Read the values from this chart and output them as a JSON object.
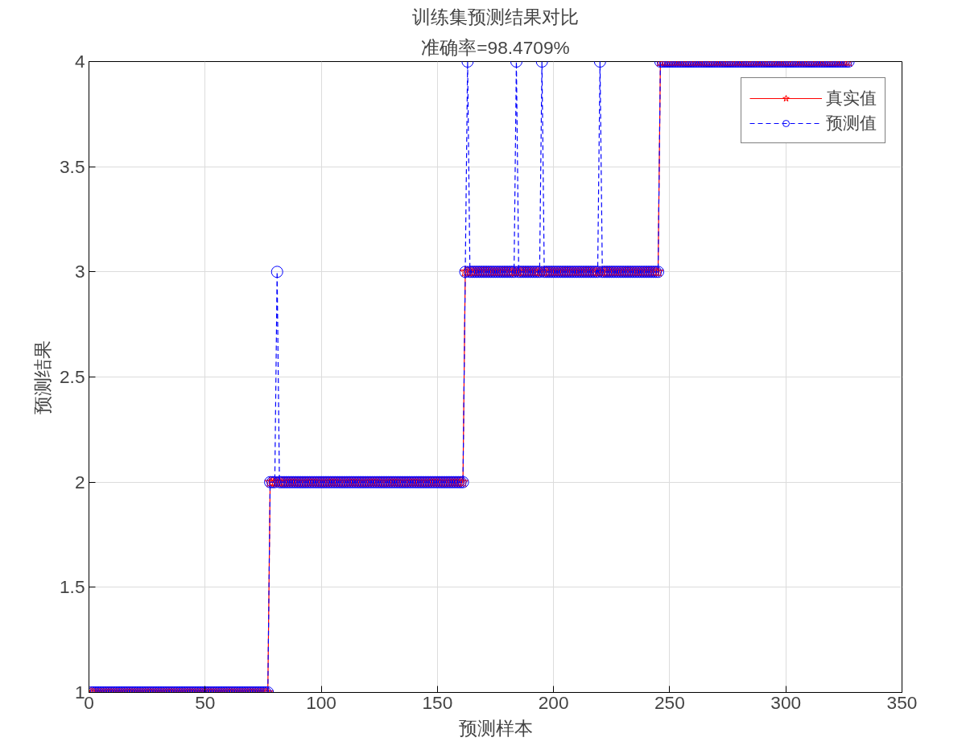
{
  "chart_data": {
    "type": "line",
    "title": "训练集预测结果对比",
    "subtitle": "准确率=98.4709%",
    "xlabel": "预测样本",
    "ylabel": "预测结果",
    "x": [
      1,
      2,
      3,
      4,
      5,
      6,
      7,
      8,
      9,
      10,
      11,
      12,
      13,
      14,
      15,
      16,
      17,
      18,
      19,
      20,
      21,
      22,
      23,
      24,
      25,
      26,
      27,
      28,
      29,
      30,
      31,
      32,
      33,
      34,
      35,
      36,
      37,
      38,
      39,
      40,
      41,
      42,
      43,
      44,
      45,
      46,
      47,
      48,
      49,
      50,
      51,
      52,
      53,
      54,
      55,
      56,
      57,
      58,
      59,
      60,
      61,
      62,
      63,
      64,
      65,
      66,
      67,
      68,
      69,
      70,
      71,
      72,
      73,
      74,
      75,
      76,
      77,
      78,
      79,
      80,
      81,
      82,
      83,
      84,
      85,
      86,
      87,
      88,
      89,
      90,
      91,
      92,
      93,
      94,
      95,
      96,
      97,
      98,
      99,
      100,
      101,
      102,
      103,
      104,
      105,
      106,
      107,
      108,
      109,
      110,
      111,
      112,
      113,
      114,
      115,
      116,
      117,
      118,
      119,
      120,
      121,
      122,
      123,
      124,
      125,
      126,
      127,
      128,
      129,
      130,
      131,
      132,
      133,
      134,
      135,
      136,
      137,
      138,
      139,
      140,
      141,
      142,
      143,
      144,
      145,
      146,
      147,
      148,
      149,
      150,
      151,
      152,
      153,
      154,
      155,
      156,
      157,
      158,
      159,
      160,
      161,
      162,
      163,
      164,
      165,
      166,
      167,
      168,
      169,
      170,
      171,
      172,
      173,
      174,
      175,
      176,
      177,
      178,
      179,
      180,
      181,
      182,
      183,
      184,
      185,
      186,
      187,
      188,
      189,
      190,
      191,
      192,
      193,
      194,
      195,
      196,
      197,
      198,
      199,
      200,
      201,
      202,
      203,
      204,
      205,
      206,
      207,
      208,
      209,
      210,
      211,
      212,
      213,
      214,
      215,
      216,
      217,
      218,
      219,
      220,
      221,
      222,
      223,
      224,
      225,
      226,
      227,
      228,
      229,
      230,
      231,
      232,
      233,
      234,
      235,
      236,
      237,
      238,
      239,
      240,
      241,
      242,
      243,
      244,
      245,
      246,
      247,
      248,
      249,
      250,
      251,
      252,
      253,
      254,
      255,
      256,
      257,
      258,
      259,
      260,
      261,
      262,
      263,
      264,
      265,
      266,
      267,
      268,
      269,
      270,
      271,
      272,
      273,
      274,
      275,
      276,
      277,
      278,
      279,
      280,
      281,
      282,
      283,
      284,
      285,
      286,
      287,
      288,
      289,
      290,
      291,
      292,
      293,
      294,
      295,
      296,
      297,
      298,
      299,
      300,
      301,
      302,
      303,
      304,
      305,
      306,
      307,
      308,
      309,
      310,
      311,
      312,
      313,
      314,
      315,
      316,
      317,
      318,
      319,
      320,
      321,
      322,
      323,
      324,
      325,
      326,
      327
    ],
    "series": [
      {
        "name": "真实值",
        "color": "#ff0000",
        "marker": "star",
        "line_style": "solid",
        "values": [
          1,
          1,
          1,
          1,
          1,
          1,
          1,
          1,
          1,
          1,
          1,
          1,
          1,
          1,
          1,
          1,
          1,
          1,
          1,
          1,
          1,
          1,
          1,
          1,
          1,
          1,
          1,
          1,
          1,
          1,
          1,
          1,
          1,
          1,
          1,
          1,
          1,
          1,
          1,
          1,
          1,
          1,
          1,
          1,
          1,
          1,
          1,
          1,
          1,
          1,
          1,
          1,
          1,
          1,
          1,
          1,
          1,
          1,
          1,
          1,
          1,
          1,
          1,
          1,
          1,
          1,
          1,
          1,
          1,
          1,
          1,
          1,
          1,
          1,
          1,
          1,
          1,
          2,
          2,
          2,
          2,
          2,
          2,
          2,
          2,
          2,
          2,
          2,
          2,
          2,
          2,
          2,
          2,
          2,
          2,
          2,
          2,
          2,
          2,
          2,
          2,
          2,
          2,
          2,
          2,
          2,
          2,
          2,
          2,
          2,
          2,
          2,
          2,
          2,
          2,
          2,
          2,
          2,
          2,
          2,
          2,
          2,
          2,
          2,
          2,
          2,
          2,
          2,
          2,
          2,
          2,
          2,
          2,
          2,
          2,
          2,
          2,
          2,
          2,
          2,
          2,
          2,
          2,
          2,
          2,
          2,
          2,
          2,
          2,
          2,
          2,
          2,
          2,
          2,
          2,
          2,
          2,
          2,
          2,
          2,
          2,
          3,
          3,
          3,
          3,
          3,
          3,
          3,
          3,
          3,
          3,
          3,
          3,
          3,
          3,
          3,
          3,
          3,
          3,
          3,
          3,
          3,
          3,
          3,
          3,
          3,
          3,
          3,
          3,
          3,
          3,
          3,
          3,
          3,
          3,
          3,
          3,
          3,
          3,
          3,
          3,
          3,
          3,
          3,
          3,
          3,
          3,
          3,
          3,
          3,
          3,
          3,
          3,
          3,
          3,
          3,
          3,
          3,
          3,
          3,
          3,
          3,
          3,
          3,
          3,
          3,
          3,
          3,
          3,
          3,
          3,
          3,
          3,
          3,
          3,
          3,
          3,
          3,
          3,
          3,
          3,
          3,
          3,
          3,
          3,
          4,
          4,
          4,
          4,
          4,
          4,
          4,
          4,
          4,
          4,
          4,
          4,
          4,
          4,
          4,
          4,
          4,
          4,
          4,
          4,
          4,
          4,
          4,
          4,
          4,
          4,
          4,
          4,
          4,
          4,
          4,
          4,
          4,
          4,
          4,
          4,
          4,
          4,
          4,
          4,
          4,
          4,
          4,
          4,
          4,
          4,
          4,
          4,
          4,
          4,
          4,
          4,
          4,
          4,
          4,
          4,
          4,
          4,
          4,
          4,
          4,
          4,
          4,
          4,
          4,
          4,
          4,
          4,
          4,
          4,
          4,
          4,
          4,
          4,
          4,
          4,
          4,
          4,
          4,
          4,
          4,
          4
        ]
      },
      {
        "name": "预测值",
        "color": "#0000ff",
        "marker": "circle",
        "line_style": "dashed",
        "values": [
          1,
          1,
          1,
          1,
          1,
          1,
          1,
          1,
          1,
          1,
          1,
          1,
          1,
          1,
          1,
          1,
          1,
          1,
          1,
          1,
          1,
          1,
          1,
          1,
          1,
          1,
          1,
          1,
          1,
          1,
          1,
          1,
          1,
          1,
          1,
          1,
          1,
          1,
          1,
          1,
          1,
          1,
          1,
          1,
          1,
          1,
          1,
          1,
          1,
          1,
          1,
          1,
          1,
          1,
          1,
          1,
          1,
          1,
          1,
          1,
          1,
          1,
          1,
          1,
          1,
          1,
          1,
          1,
          1,
          1,
          1,
          1,
          1,
          1,
          1,
          1,
          1,
          2,
          2,
          2,
          3,
          2,
          2,
          2,
          2,
          2,
          2,
          2,
          2,
          2,
          2,
          2,
          2,
          2,
          2,
          2,
          2,
          2,
          2,
          2,
          2,
          2,
          2,
          2,
          2,
          2,
          2,
          2,
          2,
          2,
          2,
          2,
          2,
          2,
          2,
          2,
          2,
          2,
          2,
          2,
          2,
          2,
          2,
          2,
          2,
          2,
          2,
          2,
          2,
          2,
          2,
          2,
          2,
          2,
          2,
          2,
          2,
          2,
          2,
          2,
          2,
          2,
          2,
          2,
          2,
          2,
          2,
          2,
          2,
          2,
          2,
          2,
          2,
          2,
          2,
          2,
          2,
          2,
          2,
          2,
          2,
          3,
          4,
          3,
          3,
          3,
          3,
          3,
          3,
          3,
          3,
          3,
          3,
          3,
          3,
          3,
          3,
          3,
          3,
          3,
          3,
          3,
          3,
          4,
          3,
          3,
          3,
          3,
          3,
          3,
          3,
          3,
          3,
          3,
          4,
          3,
          3,
          3,
          3,
          3,
          3,
          3,
          3,
          3,
          3,
          3,
          3,
          3,
          3,
          3,
          3,
          3,
          3,
          3,
          3,
          3,
          3,
          3,
          3,
          4,
          3,
          3,
          3,
          3,
          3,
          3,
          3,
          3,
          3,
          3,
          3,
          3,
          3,
          3,
          3,
          3,
          3,
          3,
          3,
          3,
          3,
          3,
          3,
          3,
          3,
          4,
          4,
          4,
          4,
          4,
          4,
          4,
          4,
          4,
          4,
          4,
          4,
          4,
          4,
          4,
          4,
          4,
          4,
          4,
          4,
          4,
          4,
          4,
          4,
          4,
          4,
          4,
          4,
          4,
          4,
          4,
          4,
          4,
          4,
          4,
          4,
          4,
          4,
          4,
          4,
          4,
          4,
          4,
          4,
          4,
          4,
          4,
          4,
          4,
          4,
          4,
          4,
          4,
          4,
          4,
          4,
          4,
          4,
          4,
          4,
          4,
          4,
          4,
          4,
          4,
          4,
          4,
          4,
          4,
          4,
          4,
          4,
          4,
          4,
          4,
          4,
          4,
          4,
          4,
          4,
          4,
          4
        ]
      }
    ],
    "xlim": [
      0,
      350
    ],
    "xticks": [
      0,
      50,
      100,
      150,
      200,
      250,
      300,
      350
    ],
    "ylim": [
      1,
      4
    ],
    "yticks": [
      1,
      1.5,
      2,
      2.5,
      3,
      3.5,
      4
    ],
    "grid": true,
    "legend": "top right"
  }
}
